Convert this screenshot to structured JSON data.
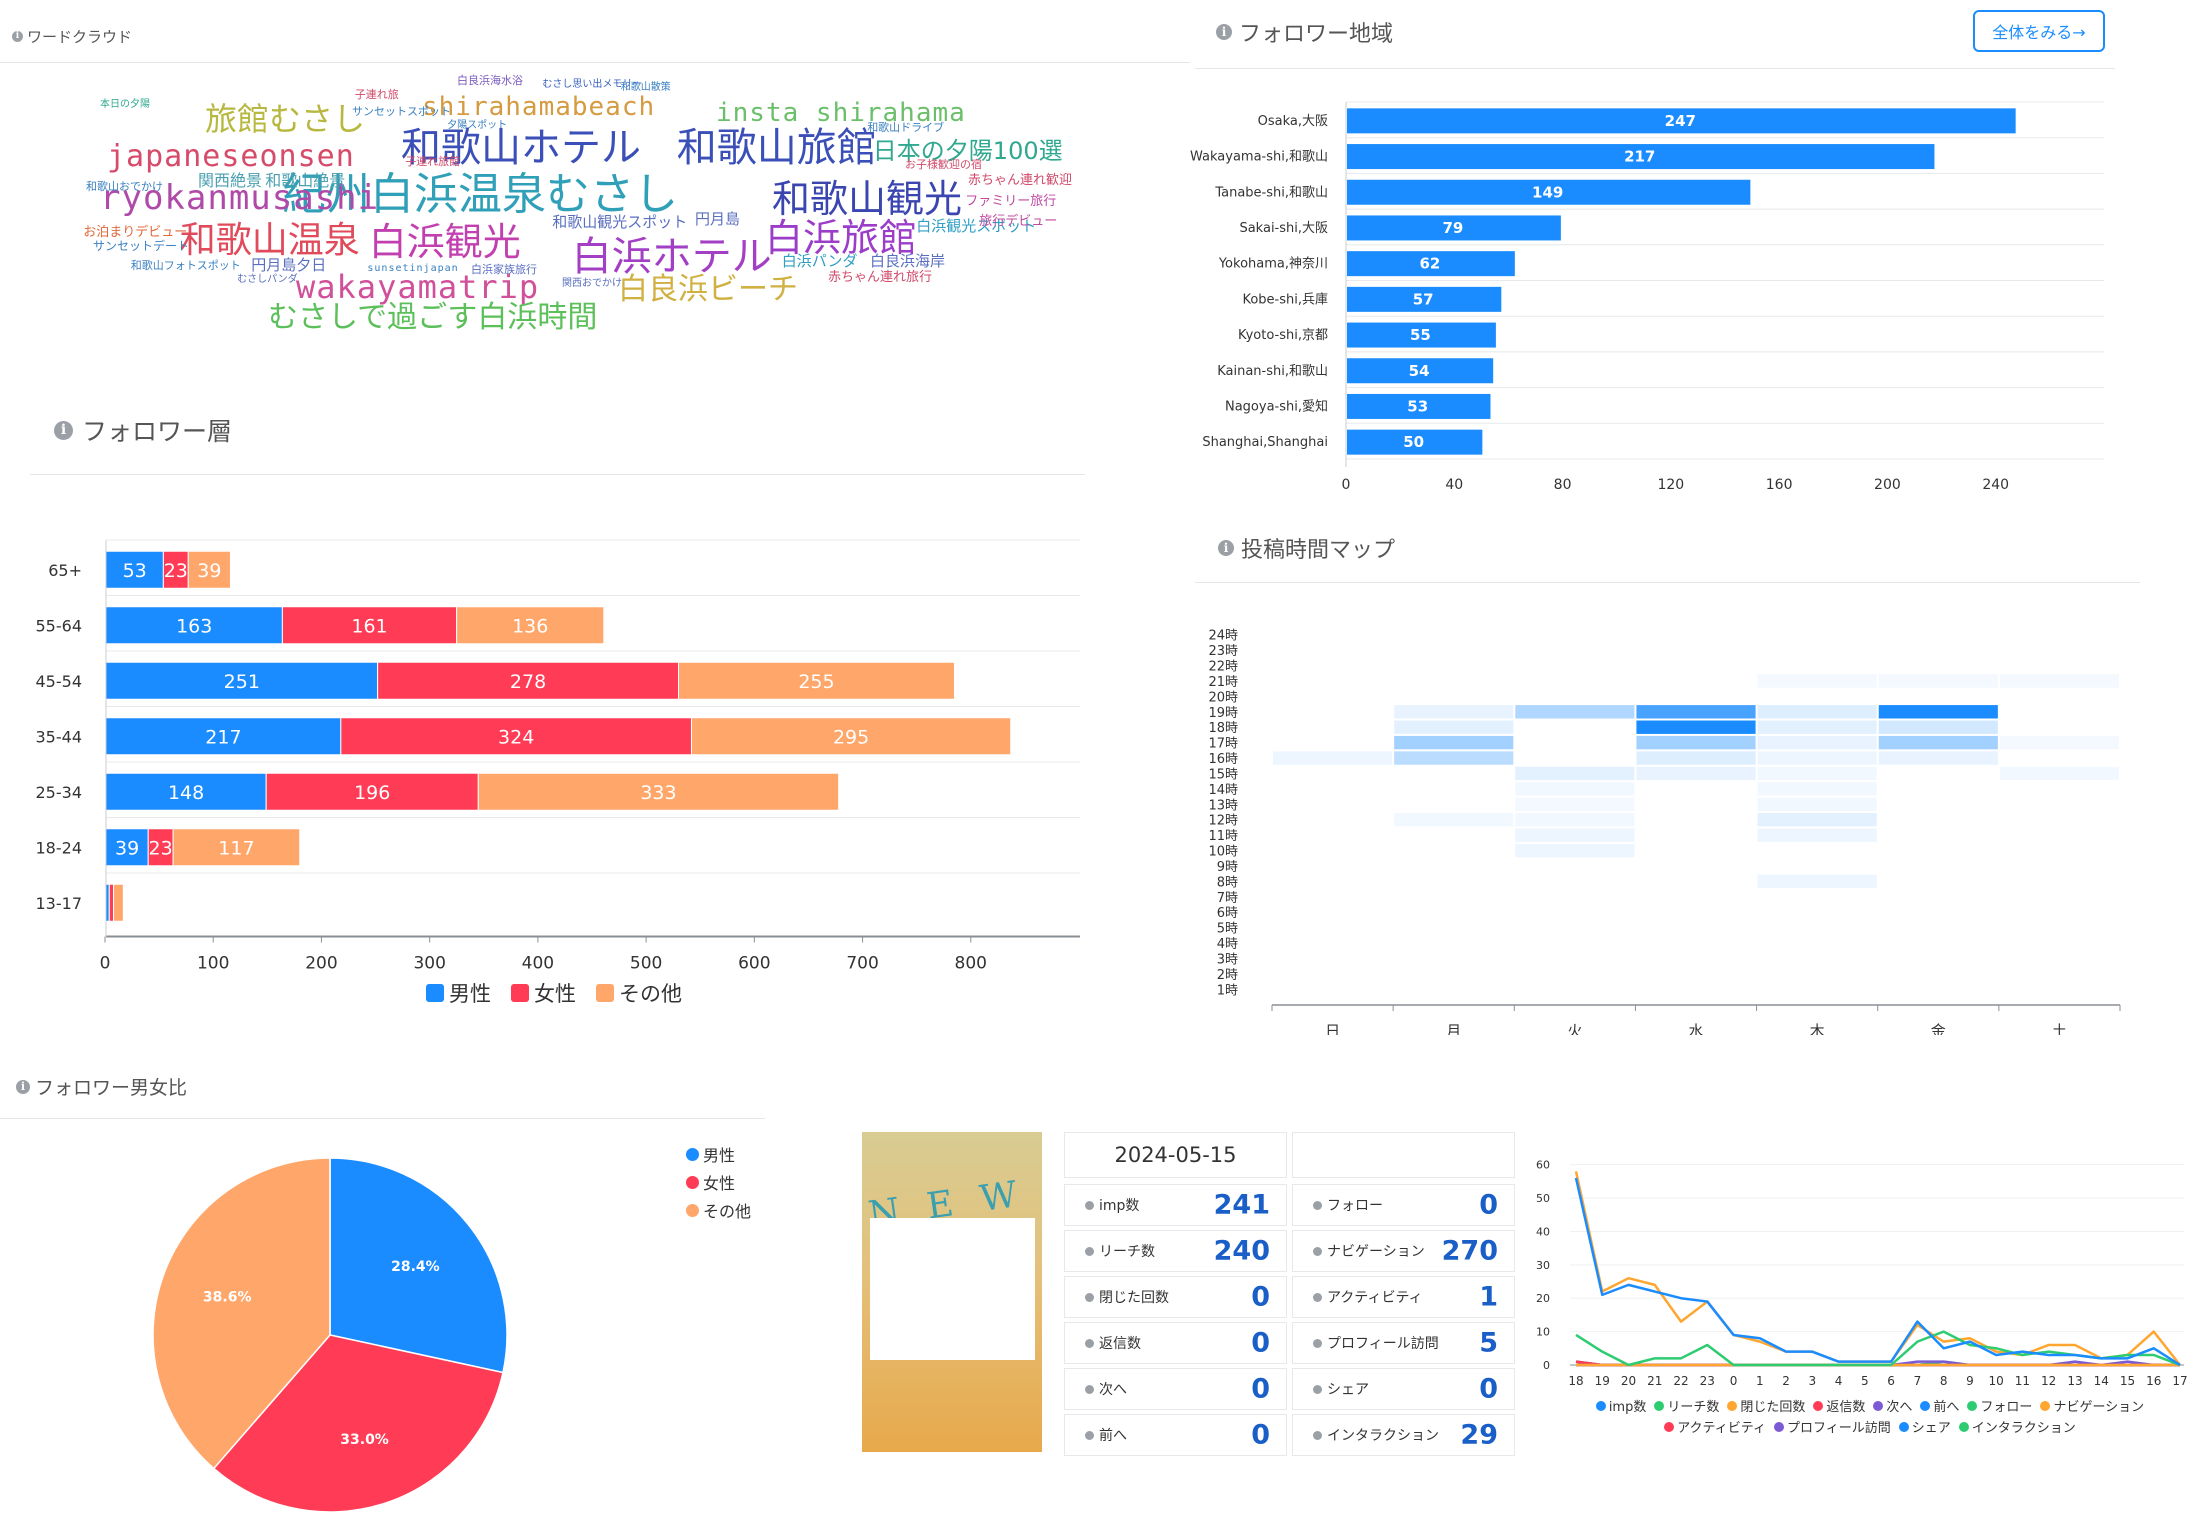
{
  "colors": {
    "blue": "#1a8cff",
    "red": "#ff3b55",
    "orange": "#ffa66b",
    "heat_base": "#1a8cff"
  },
  "wordcloud": {
    "title": "ワードクラウド",
    "words": [
      {
        "text": "紀州白浜温泉むさし",
        "color": "#2fa0b8",
        "size": 44
      },
      {
        "text": "和歌山ホテル",
        "color": "#3b4fb8",
        "size": 40
      },
      {
        "text": "和歌山旅館",
        "color": "#3b4fb8",
        "size": 40
      },
      {
        "text": "白浜ホテル",
        "color": "#a23fc4",
        "size": 40
      },
      {
        "text": "和歌山観光",
        "color": "#3a45b0",
        "size": 38
      },
      {
        "text": "白浜旅館",
        "color": "#9b3dc8",
        "size": 38
      },
      {
        "text": "白浜観光",
        "color": "#c23fb0",
        "size": 38
      },
      {
        "text": "和歌山温泉",
        "color": "#e04a5a",
        "size": 36
      },
      {
        "text": "ryokanmusashi",
        "color": "#b04aa8",
        "size": 34
      },
      {
        "text": "japaneseonsen",
        "color": "#d64a6a",
        "size": 30
      },
      {
        "text": "wakayamatrip",
        "color": "#d0509a",
        "size": 32
      },
      {
        "text": "旅館むさし",
        "color": "#b8b840",
        "size": 32
      },
      {
        "text": "むさしで過ごす白浜時間",
        "color": "#5cc05a",
        "size": 30
      },
      {
        "text": "白良浜ビーチ",
        "color": "#d0b040",
        "size": 30
      },
      {
        "text": "shirahamabeach",
        "color": "#d69a40",
        "size": 26
      },
      {
        "text": "insta shirahama",
        "color": "#6cbf6a",
        "size": 26
      },
      {
        "text": "日本の夕陽100選",
        "color": "#2fa890",
        "size": 24
      },
      {
        "text": "関西絶景",
        "color": "#4aa0b0",
        "size": 16
      },
      {
        "text": "和歌山絶景",
        "color": "#4aa0b0",
        "size": 16
      },
      {
        "text": "和歌山観光スポット",
        "color": "#5a6fc0",
        "size": 15
      },
      {
        "text": "白浜観光スポット",
        "color": "#2f9fc4",
        "size": 15
      },
      {
        "text": "白浜パンダ",
        "color": "#2f9fc4",
        "size": 15
      },
      {
        "text": "白良浜海岸",
        "color": "#5a6fc0",
        "size": 15
      },
      {
        "text": "円月島夕日",
        "color": "#5a6fc0",
        "size": 15
      },
      {
        "text": "円月島",
        "color": "#5a6fc0",
        "size": 15
      },
      {
        "text": "赤ちゃん連れ歓迎",
        "color": "#d04a6a",
        "size": 13
      },
      {
        "text": "赤ちゃん連れ旅行",
        "color": "#d04a6a",
        "size": 13
      },
      {
        "text": "ファミリー旅行",
        "color": "#c04aa0",
        "size": 13
      },
      {
        "text": "旅行デビュー",
        "color": "#c04aa0",
        "size": 13
      },
      {
        "text": "お泊まりデビュー",
        "color": "#e06a3a",
        "size": 13
      },
      {
        "text": "サンセットデート",
        "color": "#3a80c0",
        "size": 12
      },
      {
        "text": "和歌山フォトスポット",
        "color": "#3a80c0",
        "size": 11
      },
      {
        "text": "和歌山おでかけ",
        "color": "#3a80c0",
        "size": 11
      },
      {
        "text": "和歌山ドライブ",
        "color": "#3a80c0",
        "size": 11
      },
      {
        "text": "お子様歓迎の宿",
        "color": "#d04a6a",
        "size": 11
      },
      {
        "text": "サンセットスポット",
        "color": "#3a80c0",
        "size": 11
      },
      {
        "text": "子連れ旅館",
        "color": "#d04a6a",
        "size": 11
      },
      {
        "text": "子連れ旅",
        "color": "#d04a6a",
        "size": 11
      },
      {
        "text": "白良浜海水浴",
        "color": "#7a5ac0",
        "size": 11
      },
      {
        "text": "むさし思い出メモリー",
        "color": "#3a60c0",
        "size": 10
      },
      {
        "text": "和歌山散策",
        "color": "#3a80c0",
        "size": 10
      },
      {
        "text": "夕陽スポット",
        "color": "#3a80c0",
        "size": 10
      },
      {
        "text": "sunsetinjapan",
        "color": "#3a80c0",
        "size": 10
      },
      {
        "text": "白浜家族旅行",
        "color": "#5a6fc0",
        "size": 11
      },
      {
        "text": "関西おでかけ",
        "color": "#5a6fc0",
        "size": 10
      },
      {
        "text": "むさしパンダ",
        "color": "#5a6fc0",
        "size": 10
      },
      {
        "text": "本日の夕陽",
        "color": "#2fa890",
        "size": 10
      }
    ]
  },
  "region": {
    "title": "フォロワー地域",
    "button": "全体をみる→",
    "chart_data": {
      "type": "bar",
      "orientation": "horizontal",
      "categories": [
        "Osaka,大阪",
        "Wakayama-shi,和歌山",
        "Tanabe-shi,和歌山",
        "Sakai-shi,大阪",
        "Yokohama,神奈川",
        "Kobe-shi,兵庫",
        "Kyoto-shi,京都",
        "Kainan-shi,和歌山",
        "Nagoya-shi,愛知",
        "Shanghai,Shanghai"
      ],
      "values": [
        247,
        217,
        149,
        79,
        62,
        57,
        55,
        54,
        53,
        50
      ],
      "ticks": [
        0,
        40,
        80,
        120,
        160,
        200,
        240
      ],
      "xlim": [
        0,
        280
      ]
    }
  },
  "layer": {
    "title": "フォロワー層",
    "chart_data": {
      "type": "bar",
      "orientation": "horizontal",
      "stacked": true,
      "categories": [
        "65+",
        "55-64",
        "45-54",
        "35-44",
        "25-34",
        "18-24",
        "13-17"
      ],
      "series": [
        {
          "name": "男性",
          "values": [
            53,
            163,
            251,
            217,
            148,
            39,
            3
          ]
        },
        {
          "name": "女性",
          "values": [
            23,
            161,
            278,
            324,
            196,
            23,
            4
          ]
        },
        {
          "name": "その他",
          "values": [
            39,
            136,
            255,
            295,
            333,
            117,
            9
          ]
        }
      ],
      "ticks": [
        0,
        100,
        200,
        300,
        400,
        500,
        600,
        700,
        800
      ],
      "xlim": [
        0,
        900
      ],
      "legend": "bottom"
    }
  },
  "heatmap": {
    "title": "投稿時間マップ",
    "chart_data": {
      "type": "heatmap",
      "days": [
        "日",
        "月",
        "火",
        "水",
        "木",
        "金",
        "土"
      ],
      "hours": [
        "1時",
        "2時",
        "3時",
        "4時",
        "5時",
        "6時",
        "7時",
        "8時",
        "9時",
        "10時",
        "11時",
        "12時",
        "13時",
        "14時",
        "15時",
        "16時",
        "17時",
        "18時",
        "19時",
        "20時",
        "21時",
        "22時",
        "23時",
        "24時"
      ],
      "cells": [
        [
          0,
          15,
          0.08
        ],
        [
          1,
          11,
          0.06
        ],
        [
          1,
          15,
          0.3
        ],
        [
          1,
          16,
          0.4
        ],
        [
          1,
          17,
          0.12
        ],
        [
          1,
          18,
          0.1
        ],
        [
          2,
          9,
          0.08
        ],
        [
          2,
          10,
          0.08
        ],
        [
          2,
          11,
          0.06
        ],
        [
          2,
          12,
          0.05
        ],
        [
          2,
          13,
          0.06
        ],
        [
          2,
          14,
          0.12
        ],
        [
          2,
          18,
          0.35
        ],
        [
          3,
          14,
          0.1
        ],
        [
          3,
          15,
          0.15
        ],
        [
          3,
          16,
          0.4
        ],
        [
          3,
          17,
          1.0
        ],
        [
          3,
          18,
          0.8
        ],
        [
          4,
          7,
          0.08
        ],
        [
          4,
          10,
          0.08
        ],
        [
          4,
          11,
          0.12
        ],
        [
          4,
          12,
          0.06
        ],
        [
          4,
          13,
          0.06
        ],
        [
          4,
          14,
          0.06
        ],
        [
          4,
          15,
          0.08
        ],
        [
          4,
          16,
          0.1
        ],
        [
          4,
          17,
          0.12
        ],
        [
          4,
          18,
          0.15
        ],
        [
          4,
          20,
          0.05
        ],
        [
          5,
          15,
          0.1
        ],
        [
          5,
          16,
          0.4
        ],
        [
          5,
          17,
          0.2
        ],
        [
          5,
          18,
          1.0
        ],
        [
          5,
          20,
          0.05
        ],
        [
          6,
          14,
          0.06
        ],
        [
          6,
          16,
          0.05
        ],
        [
          6,
          20,
          0.05
        ]
      ]
    }
  },
  "gender": {
    "title": "フォロワー男女比",
    "chart_data": {
      "type": "pie",
      "series": [
        {
          "name": "男性",
          "value": 28.4,
          "label": "28.4%"
        },
        {
          "name": "女性",
          "value": 33.0,
          "label": "33.0%"
        },
        {
          "name": "その他",
          "value": 38.6,
          "label": "38.6%"
        }
      ],
      "legend": "top-right"
    }
  },
  "post": {
    "thumb_text": "N E W",
    "date": "2024-05-15",
    "left_metrics": [
      {
        "label": "imp数",
        "value": "241"
      },
      {
        "label": "リーチ数",
        "value": "240"
      },
      {
        "label": "閉じた回数",
        "value": "0"
      },
      {
        "label": "返信数",
        "value": "0"
      },
      {
        "label": "次へ",
        "value": "0"
      },
      {
        "label": "前へ",
        "value": "0"
      }
    ],
    "right_metrics": [
      {
        "label": "フォロー",
        "value": "0"
      },
      {
        "label": "ナビゲーション",
        "value": "270"
      },
      {
        "label": "アクティビティ",
        "value": "1"
      },
      {
        "label": "プロフィール訪問",
        "value": "5"
      },
      {
        "label": "シェア",
        "value": "0"
      },
      {
        "label": "インタラクション",
        "value": "29"
      }
    ]
  },
  "timeline": {
    "chart_data": {
      "type": "line",
      "x": [
        "18",
        "19",
        "20",
        "21",
        "22",
        "23",
        "0",
        "1",
        "2",
        "3",
        "4",
        "5",
        "6",
        "7",
        "8",
        "9",
        "10",
        "11",
        "12",
        "13",
        "14",
        "15",
        "16",
        "17"
      ],
      "yticks": [
        0,
        10,
        20,
        30,
        40,
        50,
        60
      ],
      "ylim": [
        0,
        62
      ],
      "series": [
        {
          "name": "imp数",
          "color": "#1a8cff",
          "values": [
            56,
            21,
            24,
            22,
            20,
            19,
            9,
            8,
            4,
            4,
            1,
            1,
            1,
            13,
            5,
            7,
            3,
            4,
            3,
            3,
            2,
            2,
            5,
            0
          ]
        },
        {
          "name": "リーチ数",
          "color": "#2ecc71",
          "values": [
            9,
            4,
            0,
            2,
            2,
            6,
            0,
            0,
            0,
            0,
            0,
            0,
            0,
            7,
            10,
            6,
            5,
            3,
            4,
            3,
            2,
            3,
            3,
            0
          ]
        },
        {
          "name": "閉じた回数",
          "color": "#ffa630",
          "values": [
            0,
            0,
            0,
            0,
            0,
            0,
            0,
            0,
            0,
            0,
            0,
            0,
            0,
            0,
            0,
            0,
            0,
            0,
            0,
            0,
            0,
            0,
            0,
            0
          ]
        },
        {
          "name": "返信数",
          "color": "#ff3b55",
          "values": [
            0,
            0,
            0,
            0,
            0,
            0,
            0,
            0,
            0,
            0,
            0,
            0,
            0,
            0,
            0,
            0,
            0,
            0,
            0,
            0,
            0,
            0,
            0,
            0
          ]
        },
        {
          "name": "次へ",
          "color": "#7c5ad6",
          "values": [
            0,
            0,
            0,
            0,
            0,
            0,
            0,
            0,
            0,
            0,
            0,
            0,
            0,
            0,
            0,
            0,
            0,
            0,
            0,
            0,
            0,
            0,
            0,
            0
          ]
        },
        {
          "name": "前へ",
          "color": "#1a8cff",
          "values": [
            0,
            0,
            0,
            0,
            0,
            0,
            0,
            0,
            0,
            0,
            0,
            0,
            0,
            0,
            0,
            0,
            0,
            0,
            0,
            0,
            0,
            0,
            0,
            0
          ]
        },
        {
          "name": "フォロー",
          "color": "#2ecc71",
          "values": [
            0,
            0,
            0,
            0,
            0,
            0,
            0,
            0,
            0,
            0,
            0,
            0,
            0,
            0,
            0,
            0,
            0,
            0,
            0,
            0,
            0,
            0,
            0,
            0
          ]
        },
        {
          "name": "ナビゲーション",
          "color": "#ffa630",
          "values": [
            58,
            22,
            26,
            24,
            13,
            19,
            9,
            7,
            4,
            4,
            1,
            1,
            1,
            12,
            7,
            8,
            4,
            3,
            6,
            6,
            2,
            3,
            10,
            0
          ]
        },
        {
          "name": "アクティビティ",
          "color": "#ff3b55",
          "values": [
            1,
            0,
            0,
            0,
            0,
            0,
            0,
            0,
            0,
            0,
            0,
            0,
            0,
            0,
            0,
            0,
            0,
            0,
            0,
            0,
            0,
            0,
            0,
            0
          ]
        },
        {
          "name": "プロフィール訪問",
          "color": "#7c5ad6",
          "values": [
            1,
            0,
            0,
            0,
            0,
            0,
            0,
            0,
            0,
            0,
            0,
            0,
            0,
            1,
            1,
            0,
            0,
            0,
            0,
            1,
            0,
            1,
            0,
            0
          ]
        },
        {
          "name": "シェア",
          "color": "#1a8cff",
          "values": [
            0,
            0,
            0,
            0,
            0,
            0,
            0,
            0,
            0,
            0,
            0,
            0,
            0,
            0,
            0,
            0,
            0,
            0,
            0,
            0,
            0,
            0,
            0,
            0
          ]
        },
        {
          "name": "インタラクション",
          "color": "#2ecc71",
          "values": [
            1,
            0,
            0,
            0,
            0,
            0,
            0,
            0,
            0,
            0,
            0,
            0,
            0,
            0,
            1,
            0,
            0,
            0,
            0,
            0,
            0,
            0,
            0,
            0
          ]
        }
      ],
      "legend": "bottom"
    }
  }
}
